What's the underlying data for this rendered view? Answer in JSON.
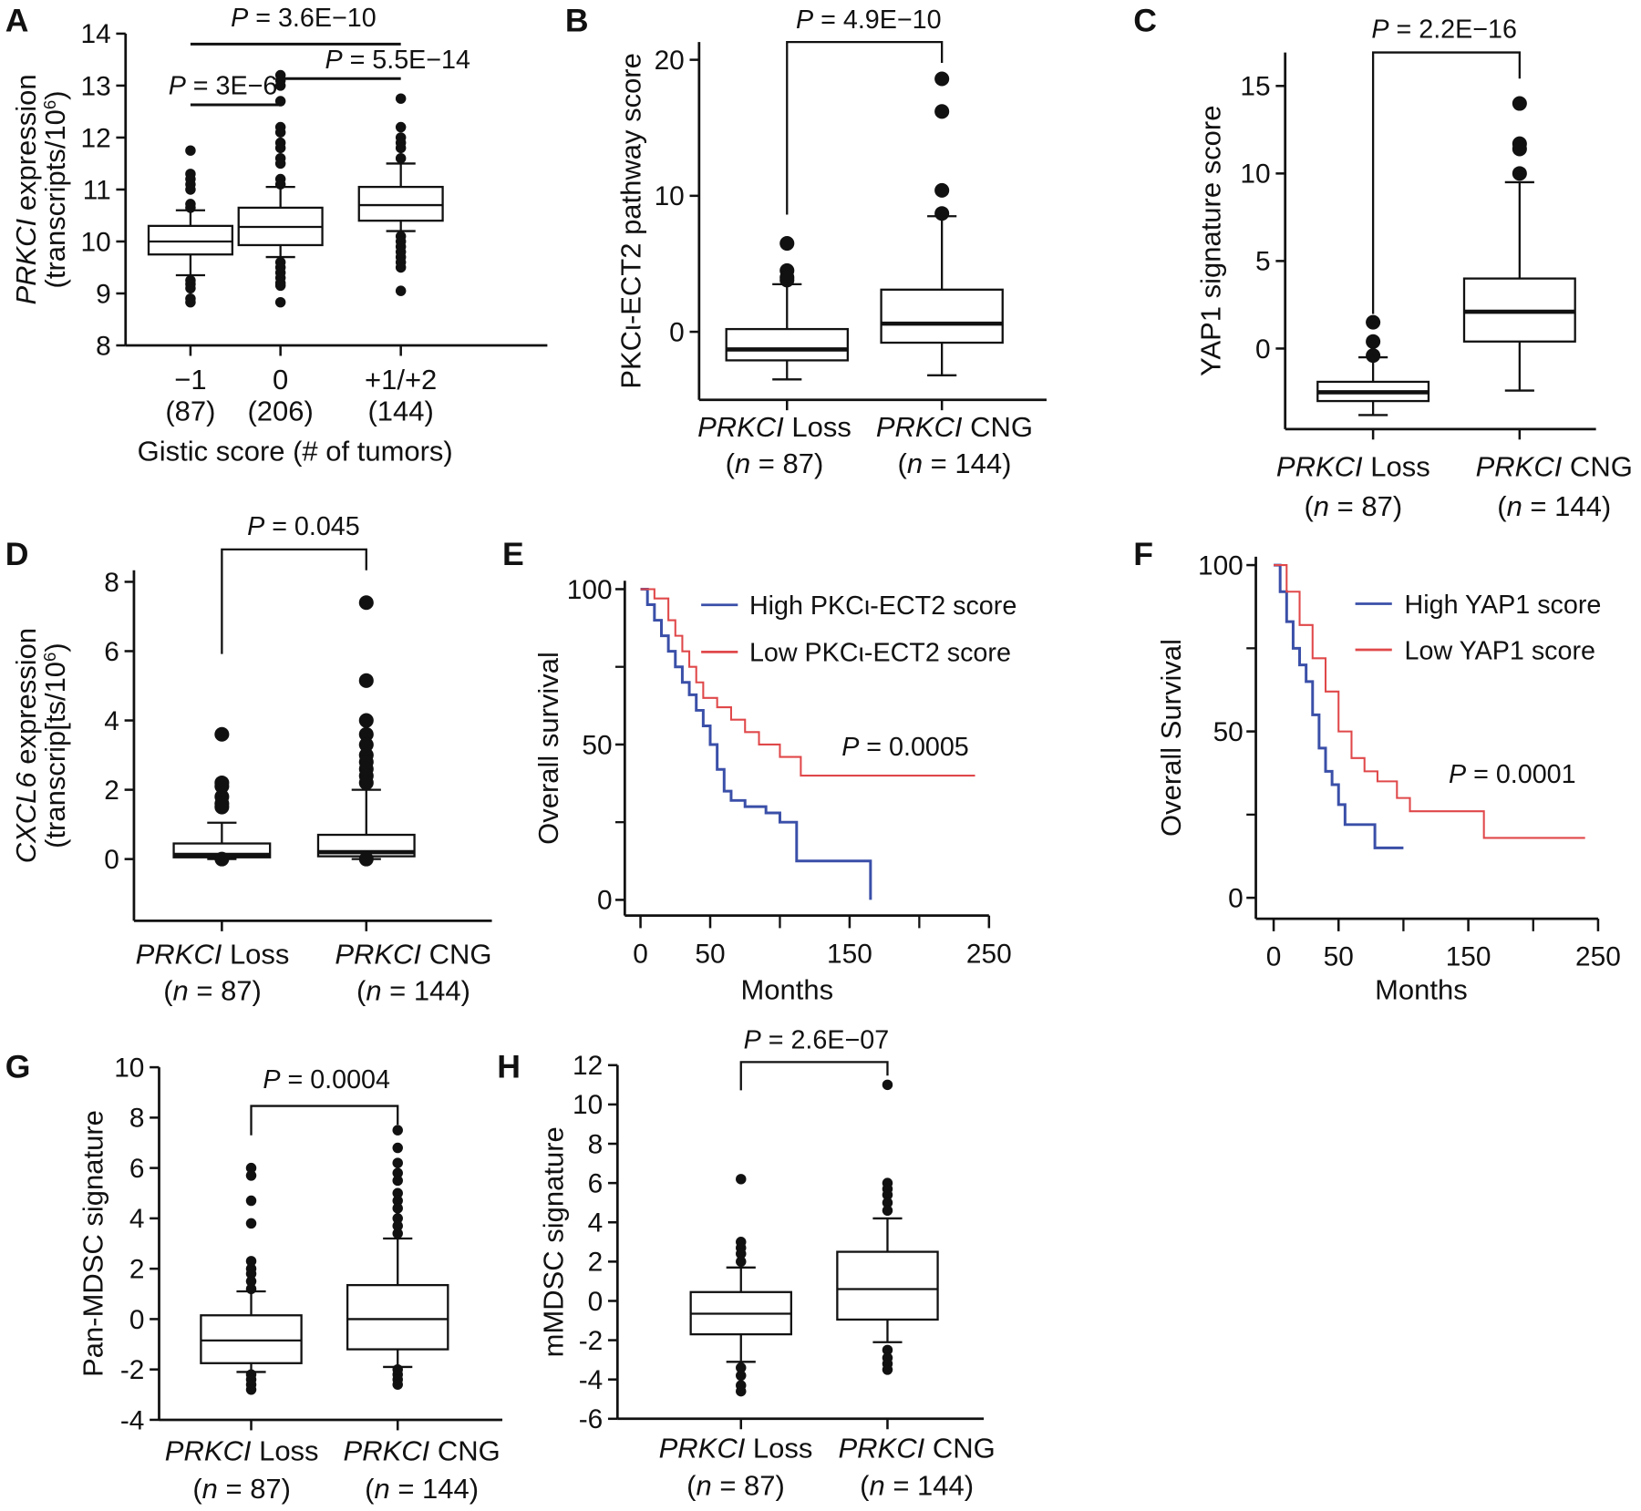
{
  "colors": {
    "axis": "#111111",
    "high": "#3a4fa8",
    "low": "#e0484a"
  },
  "chart_data": [
    {
      "panel": "A",
      "type": "box",
      "ylabel": {
        "italic": "PRKCI",
        "rest": " expression",
        "line2": "(transcripts/10",
        "sup": "6",
        "close": ")"
      },
      "xlabel": "Gistic score (# of tumors)",
      "ylim": [
        8,
        14
      ],
      "yticks": [
        "8",
        "9",
        "10",
        "11",
        "12",
        "13",
        "14"
      ],
      "ytick_values": [
        8,
        9,
        10,
        11,
        12,
        13,
        14
      ],
      "categories": [
        {
          "label": "−1",
          "count": "(87)",
          "whisker_low": 9.35,
          "q1": 9.75,
          "median": 10.0,
          "q3": 10.3,
          "whisker_high": 10.6,
          "outliers": [
            11.75,
            11.3,
            11.2,
            11.1,
            11.0,
            10.72,
            10.65,
            9.25,
            9.18,
            9.1,
            8.9,
            8.83
          ]
        },
        {
          "label": "0",
          "count": "(206)",
          "whisker_low": 9.7,
          "q1": 9.93,
          "median": 10.28,
          "q3": 10.65,
          "whisker_high": 11.05,
          "outliers": [
            13.2,
            13.1,
            13.0,
            12.7,
            12.2,
            12.1,
            11.9,
            11.8,
            11.6,
            11.5,
            11.2,
            11.1,
            9.6,
            9.5,
            9.4,
            9.3,
            9.2,
            9.15,
            8.83
          ]
        },
        {
          "label": "+1/+2",
          "count": "(144)",
          "whisker_low": 10.2,
          "q1": 10.4,
          "median": 10.7,
          "q3": 11.05,
          "whisker_high": 11.5,
          "outliers": [
            12.75,
            12.2,
            12.0,
            11.9,
            11.8,
            11.6,
            10.1,
            10.0,
            9.9,
            9.8,
            9.7,
            9.6,
            9.5,
            9.05
          ]
        }
      ],
      "comparisons": [
        {
          "pair": [
            0,
            2
          ],
          "label_p": "P",
          "label_rest": " = 3.6E−10"
        },
        {
          "pair": [
            0,
            1
          ],
          "label_p": "P",
          "label_rest": " = 3E−6"
        },
        {
          "pair": [
            1,
            2
          ],
          "label_p": "P",
          "label_rest": " = 5.5E−14"
        }
      ]
    },
    {
      "panel": "B",
      "type": "box",
      "ylabel": {
        "rest": "PKCι-ECT2 pathway score"
      },
      "ylim": [
        -4.85,
        21
      ],
      "yticks": [
        "0",
        "10",
        "20"
      ],
      "ytick_values": [
        0,
        10,
        20
      ],
      "categories": [
        {
          "gene": "PRKCI",
          "group": " Loss",
          "n": "87",
          "whisker_low": -3.5,
          "q1": -2.1,
          "median": -1.3,
          "q3": 0.2,
          "whisker_high": 3.5,
          "outliers": [
            6.5,
            4.5,
            4.0,
            3.8
          ]
        },
        {
          "gene": "PRKCI",
          "group": " CNG",
          "n": "144",
          "whisker_low": -3.2,
          "q1": -0.8,
          "median": 0.6,
          "q3": 3.1,
          "whisker_high": 8.5,
          "outliers": [
            18.6,
            16.2,
            10.4,
            8.7
          ]
        }
      ],
      "comparisons": [
        {
          "pair": [
            0,
            1
          ],
          "label_p": "P",
          "label_rest": " = 4.9E−10"
        }
      ]
    },
    {
      "panel": "C",
      "type": "box",
      "ylabel": {
        "rest": "YAP1 signature score"
      },
      "ylim": [
        -4.6,
        16.9
      ],
      "yticks": [
        "0",
        "5",
        "10",
        "15"
      ],
      "ytick_values": [
        0,
        5,
        10,
        15
      ],
      "categories": [
        {
          "gene": "PRKCI",
          "group": " Loss",
          "n": "87",
          "whisker_low": -3.8,
          "q1": -3.0,
          "median": -2.5,
          "q3": -1.9,
          "whisker_high": -0.5,
          "outliers": [
            1.5,
            0.4,
            -0.4
          ]
        },
        {
          "gene": "PRKCI",
          "group": " CNG",
          "n": "144",
          "whisker_low": -2.4,
          "q1": 0.4,
          "median": 2.1,
          "q3": 4.0,
          "whisker_high": 9.5,
          "outliers": [
            14.0,
            11.7,
            11.4,
            10.0
          ]
        }
      ],
      "comparisons": [
        {
          "pair": [
            0,
            1
          ],
          "label_p": "P",
          "label_rest": " = 2.2E−16"
        }
      ]
    },
    {
      "panel": "D",
      "type": "box",
      "ylabel": {
        "italic": "CXCL6",
        "rest": " expression",
        "line2": "(transcrip[ts/10",
        "sup": "6",
        "close": ")"
      },
      "ylim": [
        -1.8,
        8.3
      ],
      "yticks": [
        "0",
        "2",
        "4",
        "6",
        "8"
      ],
      "ytick_values": [
        0,
        2,
        4,
        6,
        8
      ],
      "categories": [
        {
          "gene": "PRKCI",
          "group": " Loss",
          "n": "87",
          "whisker_low": 0,
          "q1": 0.05,
          "median": 0.12,
          "q3": 0.45,
          "whisker_high": 1.05,
          "outliers": [
            3.6,
            2.2,
            2.1,
            1.8,
            1.6,
            1.5,
            0.0
          ]
        },
        {
          "gene": "PRKCI",
          "group": " CNG",
          "n": "144",
          "whisker_low": 0,
          "q1": 0.08,
          "median": 0.2,
          "q3": 0.7,
          "whisker_high": 2.0,
          "outliers": [
            7.4,
            5.15,
            4.0,
            3.6,
            3.3,
            3.0,
            2.8,
            2.6,
            2.4,
            2.2,
            0.0
          ]
        }
      ],
      "comparisons": [
        {
          "pair": [
            0,
            1
          ],
          "label_p": "P",
          "label_rest": " = 0.045"
        }
      ]
    },
    {
      "panel": "E",
      "type": "line",
      "ylabel": "Overall survival",
      "xlabel": "Months",
      "ylim": [
        0,
        100
      ],
      "yticks": [
        "0",
        "50",
        "100"
      ],
      "ytick_values": [
        0,
        50,
        100
      ],
      "yminor": [
        25,
        75
      ],
      "xlim": [
        0,
        250
      ],
      "xticks": [
        "0",
        "50",
        "150",
        "250"
      ],
      "xtick_values": [
        0,
        50,
        150,
        250
      ],
      "xminor": [
        100,
        200
      ],
      "series": [
        {
          "name": "High PKCι-ECT2 score",
          "color_key": "high",
          "x": [
            0,
            5,
            10,
            15,
            20,
            25,
            30,
            35,
            40,
            45,
            50,
            55,
            60,
            65,
            75,
            90,
            100,
            112,
            112,
            165,
            165
          ],
          "y": [
            100,
            95,
            90,
            85,
            80,
            75,
            70,
            66,
            61,
            56,
            50,
            42,
            35,
            32,
            30,
            28,
            25,
            25,
            12.5,
            12.5,
            0
          ]
        },
        {
          "name": "Low PKCι-ECT2 score",
          "color_key": "low",
          "x": [
            0,
            10,
            20,
            25,
            30,
            35,
            40,
            45,
            55,
            65,
            75,
            85,
            100,
            115,
            240
          ],
          "y": [
            100,
            97,
            90,
            85,
            80,
            75,
            70,
            65,
            62,
            58,
            54,
            50,
            46,
            40,
            40
          ]
        }
      ],
      "annotation": {
        "label_p": "P",
        "label_rest": " = 0.0005"
      },
      "legend": "top-right"
    },
    {
      "panel": "F",
      "type": "line",
      "ylabel": "Overall Survival",
      "xlabel": "Months",
      "ylim": [
        0,
        100
      ],
      "yticks": [
        "0",
        "50",
        "100"
      ],
      "ytick_values": [
        0,
        50,
        100
      ],
      "yminor": [
        25,
        75
      ],
      "xlim": [
        0,
        250
      ],
      "xticks": [
        "0",
        "50",
        "150",
        "250"
      ],
      "xtick_values": [
        0,
        50,
        150,
        250
      ],
      "xminor": [
        100,
        200
      ],
      "series": [
        {
          "name": "High YAP1 score",
          "color_key": "high",
          "x": [
            0,
            5,
            10,
            15,
            20,
            25,
            30,
            35,
            40,
            45,
            50,
            55,
            77,
            78,
            100
          ],
          "y": [
            100,
            92,
            83,
            75,
            70,
            65,
            55,
            45,
            38,
            34,
            28,
            22,
            22,
            15,
            15
          ]
        },
        {
          "name": "Low YAP1 score",
          "color_key": "low",
          "x": [
            0,
            10,
            20,
            30,
            40,
            50,
            60,
            70,
            80,
            95,
            105,
            161,
            162,
            240
          ],
          "y": [
            100,
            92,
            82,
            72,
            62,
            50,
            42,
            38,
            35,
            30,
            26,
            26,
            18,
            18
          ]
        }
      ],
      "annotation": {
        "label_p": "P",
        "label_rest": " = 0.0001"
      },
      "legend": "top-right"
    },
    {
      "panel": "G",
      "type": "box",
      "ylabel": {
        "rest": "Pan-MDSC signature"
      },
      "ylim": [
        -4,
        10
      ],
      "yticks": [
        "-4",
        "-2",
        "0",
        "2",
        "4",
        "6",
        "8",
        "10"
      ],
      "ytick_values": [
        -4,
        -2,
        0,
        2,
        4,
        6,
        8,
        10
      ],
      "categories": [
        {
          "gene": "PRKCI",
          "group": " Loss",
          "n": "87",
          "whisker_low": -2.1,
          "q1": -1.75,
          "median": -0.85,
          "q3": 0.15,
          "whisker_high": 1.1,
          "outliers": [
            6.0,
            5.7,
            4.7,
            3.8,
            2.3,
            2.0,
            1.8,
            1.5,
            1.2,
            -2.2,
            -2.4,
            -2.6,
            -2.8
          ]
        },
        {
          "gene": "PRKCI",
          "group": " CNG",
          "n": "144",
          "whisker_low": -1.9,
          "q1": -1.2,
          "median": 0.0,
          "q3": 1.35,
          "whisker_high": 3.2,
          "outliers": [
            7.5,
            6.8,
            6.2,
            5.8,
            5.5,
            5.0,
            4.7,
            4.4,
            4.0,
            3.7,
            3.4,
            -2.0,
            -2.2,
            -2.4,
            -2.6
          ]
        }
      ],
      "comparisons": [
        {
          "pair": [
            0,
            1
          ],
          "label_p": "P",
          "label_rest": " = 0.0004"
        }
      ]
    },
    {
      "panel": "H",
      "type": "box",
      "ylabel": {
        "rest": "mMDSC signature"
      },
      "ylim": [
        -6,
        12
      ],
      "yticks": [
        "-6",
        "-4",
        "-2",
        "0",
        "2",
        "4",
        "6",
        "8",
        "10",
        "12"
      ],
      "ytick_values": [
        -6,
        -4,
        -2,
        0,
        2,
        4,
        6,
        8,
        10,
        12
      ],
      "categories": [
        {
          "gene": "PRKCI",
          "group": " Loss",
          "n": "87",
          "whisker_low": -3.1,
          "q1": -1.7,
          "median": -0.65,
          "q3": 0.45,
          "whisker_high": 1.7,
          "outliers": [
            6.2,
            3.0,
            2.7,
            2.4,
            2.0,
            -3.4,
            -3.8,
            -4.3,
            -4.6
          ]
        },
        {
          "gene": "PRKCI",
          "group": " CNG",
          "n": "144",
          "whisker_low": -2.1,
          "q1": -0.95,
          "median": 0.6,
          "q3": 2.5,
          "whisker_high": 4.2,
          "outliers": [
            11.0,
            6.0,
            5.7,
            5.4,
            5.0,
            4.6,
            -2.5,
            -2.9,
            -3.2,
            -3.5
          ]
        }
      ],
      "comparisons": [
        {
          "pair": [
            0,
            1
          ],
          "label_p": "P",
          "label_rest": " = 2.6E−07"
        }
      ]
    }
  ]
}
